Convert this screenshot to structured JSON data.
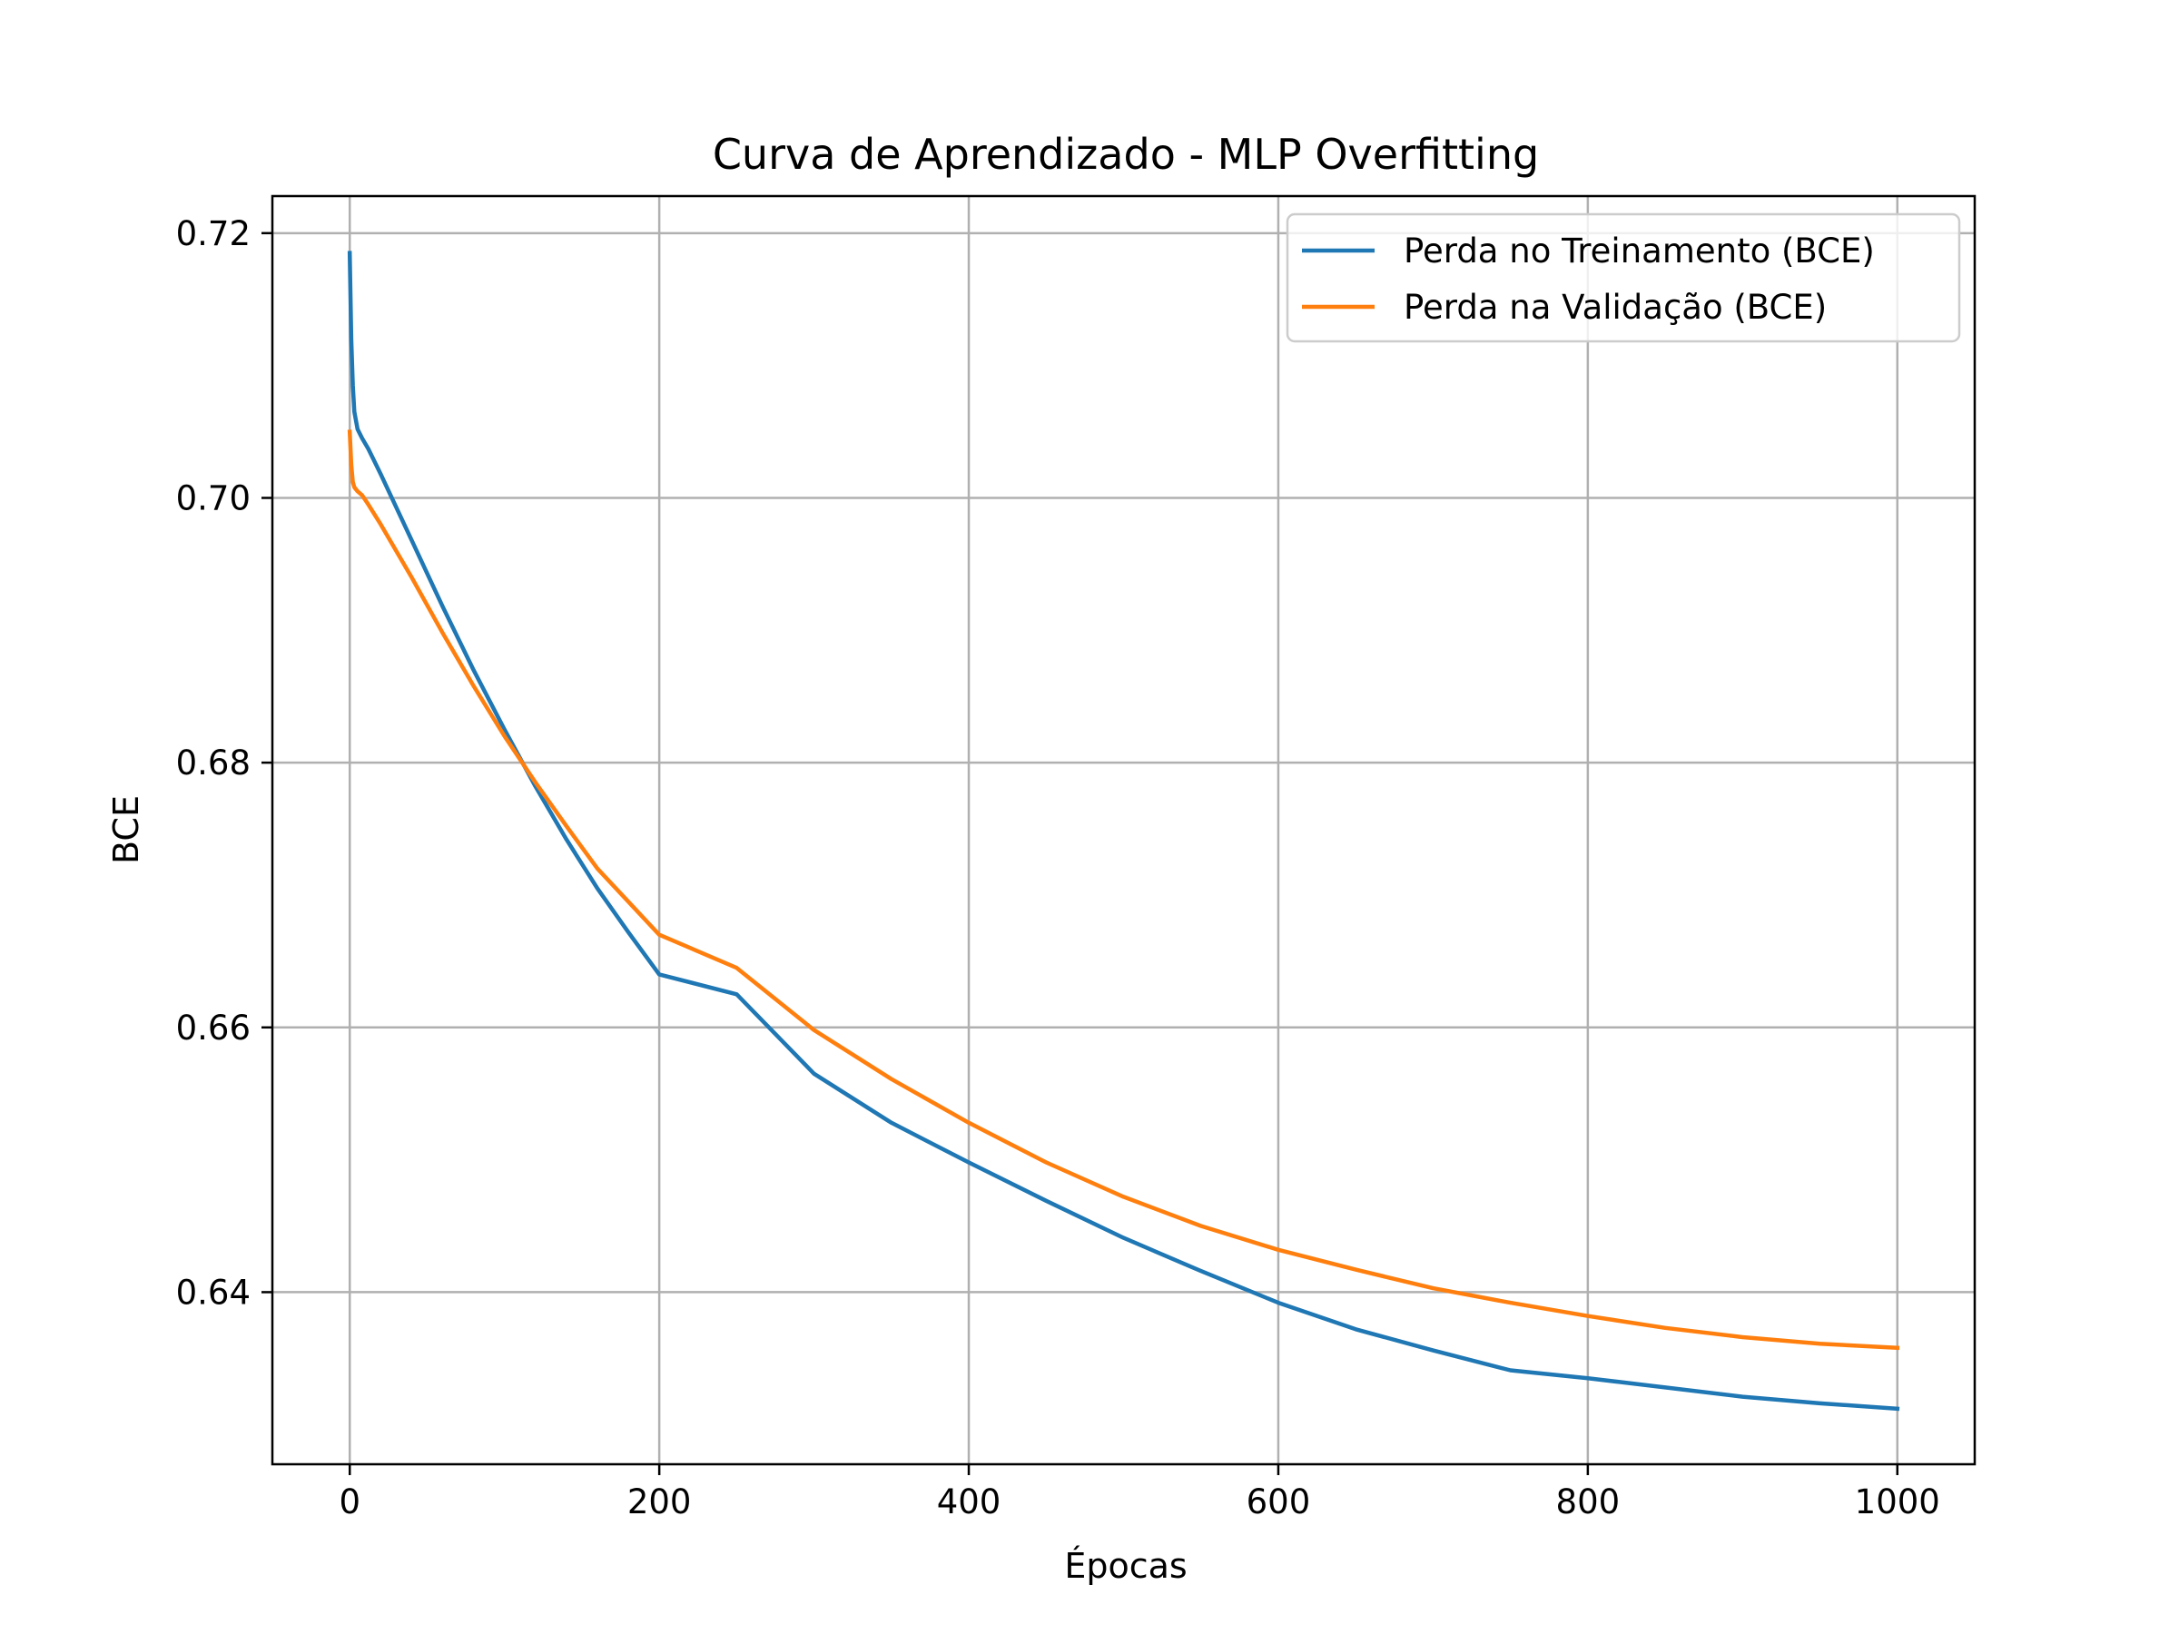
{
  "chart_data": {
    "type": "line",
    "title": "Curva de Aprendizado - MLP Overfitting",
    "xlabel": "Épocas",
    "ylabel": "BCE",
    "xlim": [
      -50,
      1050
    ],
    "ylim": [
      0.627,
      0.7228
    ],
    "xticks": [
      0,
      200,
      400,
      600,
      800,
      1000
    ],
    "yticks": [
      0.64,
      0.66,
      0.68,
      0.7,
      0.72
    ],
    "xtick_labels": [
      "0",
      "200",
      "400",
      "600",
      "800",
      "1000"
    ],
    "ytick_labels": [
      "0.64",
      "0.66",
      "0.68",
      "0.70",
      "0.72"
    ],
    "grid": true,
    "legend_position": "top-right",
    "series": [
      {
        "name": "Perda no Treinamento (BCE)",
        "color": "#1f77b4",
        "x": [
          0,
          1,
          2,
          3,
          5,
          8,
          12,
          20,
          40,
          60,
          80,
          100,
          120,
          140,
          160,
          180,
          200,
          250,
          300,
          350,
          400,
          450,
          500,
          550,
          600,
          650,
          700,
          750,
          800,
          850,
          900,
          950,
          1000
        ],
        "y": [
          0.7185,
          0.712,
          0.7085,
          0.7065,
          0.7052,
          0.7045,
          0.7037,
          0.7018,
          0.6968,
          0.6918,
          0.687,
          0.6825,
          0.6782,
          0.6742,
          0.6705,
          0.6672,
          0.664,
          0.6625,
          0.6565,
          0.6528,
          0.6498,
          0.6469,
          0.6441,
          0.6416,
          0.6392,
          0.6372,
          0.6356,
          0.6341,
          0.6335,
          0.6328,
          0.6321,
          0.6316,
          0.6312
        ]
      },
      {
        "name": "Perda na Validação (BCE)",
        "color": "#ff7f0e",
        "x": [
          0,
          1,
          2,
          3,
          5,
          8,
          12,
          20,
          40,
          60,
          80,
          100,
          120,
          140,
          160,
          180,
          200,
          250,
          300,
          350,
          400,
          450,
          500,
          550,
          600,
          650,
          700,
          750,
          800,
          850,
          900,
          950,
          1000
        ],
        "y": [
          0.705,
          0.7025,
          0.7012,
          0.7008,
          0.7005,
          0.7002,
          0.6995,
          0.698,
          0.694,
          0.6898,
          0.6858,
          0.682,
          0.6785,
          0.6752,
          0.672,
          0.6695,
          0.667,
          0.6645,
          0.6598,
          0.6561,
          0.6528,
          0.6498,
          0.6472,
          0.645,
          0.6432,
          0.6417,
          0.6403,
          0.6392,
          0.6382,
          0.6373,
          0.6366,
          0.6361,
          0.6358
        ]
      }
    ]
  }
}
